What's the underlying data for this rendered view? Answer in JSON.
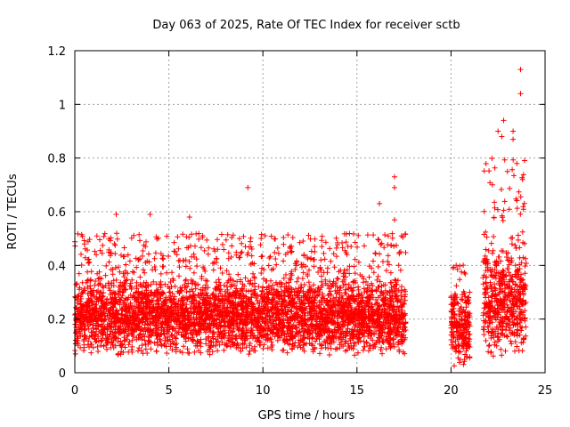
{
  "chart_data": {
    "type": "scatter",
    "title": "Day 063 of 2025, Rate Of TEC Index for receiver sctb",
    "xlabel": "GPS time / hours",
    "ylabel": "ROTI / TECUs",
    "xlim": [
      0,
      25
    ],
    "ylim": [
      0,
      1.2
    ],
    "x_ticks": [
      0,
      5,
      10,
      15,
      20,
      25
    ],
    "x_tick_labels": [
      "0",
      "5",
      "10",
      "15",
      "20",
      "25"
    ],
    "y_ticks": [
      0,
      0.2,
      0.4,
      0.6,
      0.8,
      1,
      1.2
    ],
    "y_tick_labels": [
      "0",
      "0.2",
      "0.4",
      "0.6",
      "0.8",
      "1",
      "1.2"
    ],
    "grid": true,
    "marker": "plus",
    "marker_color": "#ff0000",
    "segments": [
      {
        "x_start": 0.0,
        "x_end": 17.6,
        "y_base_low": 0.06,
        "y_base_high": 0.34,
        "y_tail_max": 0.52
      },
      {
        "x_start": 20.0,
        "x_end": 21.0,
        "y_base_low": 0.02,
        "y_base_high": 0.3,
        "y_tail_max": 0.42
      },
      {
        "x_start": 21.7,
        "x_end": 24.0,
        "y_base_low": 0.05,
        "y_base_high": 0.45,
        "y_tail_max": 0.8
      }
    ],
    "notable_points": [
      {
        "x": 2.2,
        "y": 0.59
      },
      {
        "x": 4.0,
        "y": 0.59
      },
      {
        "x": 6.1,
        "y": 0.58
      },
      {
        "x": 9.2,
        "y": 0.69
      },
      {
        "x": 16.2,
        "y": 0.63
      },
      {
        "x": 17.0,
        "y": 0.73
      },
      {
        "x": 17.0,
        "y": 0.69
      },
      {
        "x": 17.0,
        "y": 0.57
      },
      {
        "x": 22.8,
        "y": 0.94
      },
      {
        "x": 22.5,
        "y": 0.9
      },
      {
        "x": 22.7,
        "y": 0.88
      },
      {
        "x": 23.3,
        "y": 0.9
      },
      {
        "x": 23.3,
        "y": 0.87
      },
      {
        "x": 23.7,
        "y": 1.13
      },
      {
        "x": 23.7,
        "y": 1.04
      },
      {
        "x": 23.5,
        "y": 0.78
      },
      {
        "x": 23.8,
        "y": 0.72
      },
      {
        "x": 23.0,
        "y": 0.75
      },
      {
        "x": 22.2,
        "y": 0.7
      }
    ]
  }
}
